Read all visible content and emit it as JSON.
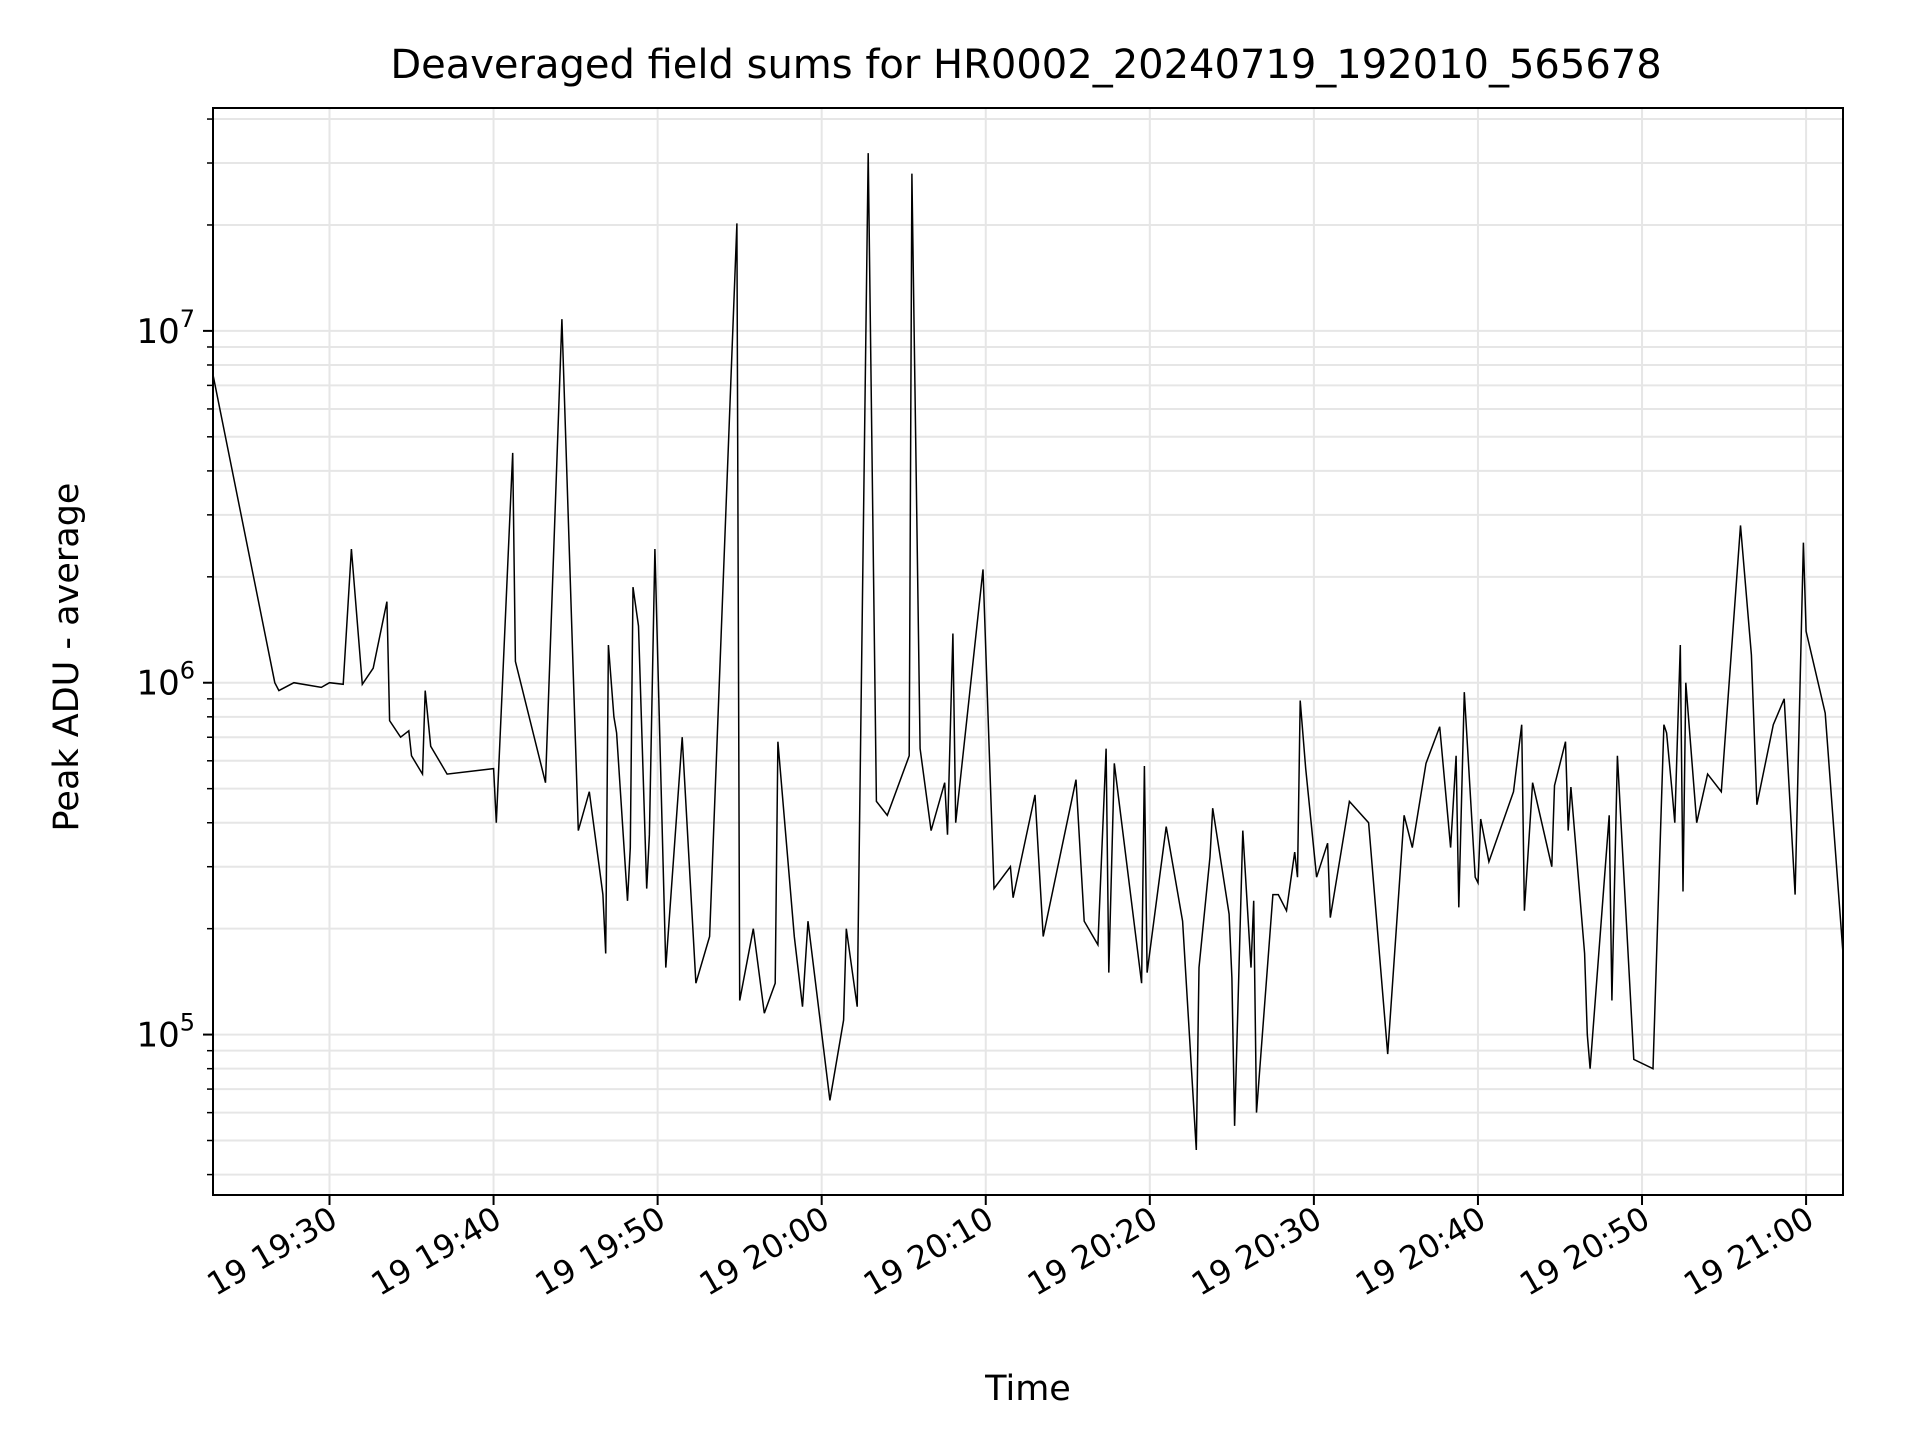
{
  "chart_data": {
    "type": "line",
    "title": "Deaveraged field sums for HR0002_20240719_192010_565678",
    "xlabel": "Time",
    "ylabel": "Peak ADU - average",
    "yscale": "log",
    "grid": true,
    "line_color": "#000000",
    "grid_color": "#e6e6e6",
    "xlim": [
      "2024-07-19T19:22:54",
      "2024-07-19T21:02:15"
    ],
    "ylim": [
      35000,
      43000000
    ],
    "x_ticks": [
      {
        "t": "2024-07-19T19:30:00",
        "label": "19 19:30"
      },
      {
        "t": "2024-07-19T19:40:00",
        "label": "19 19:40"
      },
      {
        "t": "2024-07-19T19:50:00",
        "label": "19 19:50"
      },
      {
        "t": "2024-07-19T20:00:00",
        "label": "19 20:00"
      },
      {
        "t": "2024-07-19T20:10:00",
        "label": "19 20:10"
      },
      {
        "t": "2024-07-19T20:20:00",
        "label": "19 20:20"
      },
      {
        "t": "2024-07-19T20:30:00",
        "label": "19 20:30"
      },
      {
        "t": "2024-07-19T20:40:00",
        "label": "19 20:40"
      },
      {
        "t": "2024-07-19T20:50:00",
        "label": "19 20:50"
      },
      {
        "t": "2024-07-19T21:00:00",
        "label": "19 21:00"
      }
    ],
    "y_ticks": [
      {
        "value": 100000,
        "base": "10",
        "exp": "5"
      },
      {
        "value": 1000000,
        "base": "10",
        "exp": "6"
      },
      {
        "value": 10000000,
        "base": "10",
        "exp": "7"
      }
    ],
    "series": [
      {
        "x": [
          "2024-07-19T19:22:54",
          "2024-07-19T19:26:40",
          "2024-07-19T19:26:55",
          "2024-07-19T19:27:50",
          "2024-07-19T19:29:30",
          "2024-07-19T19:30:00",
          "2024-07-19T19:30:50",
          "2024-07-19T19:31:20",
          "2024-07-19T19:32:00",
          "2024-07-19T19:32:40",
          "2024-07-19T19:33:30",
          "2024-07-19T19:33:40",
          "2024-07-19T19:34:20",
          "2024-07-19T19:34:50",
          "2024-07-19T19:35:00",
          "2024-07-19T19:35:40",
          "2024-07-19T19:35:50",
          "2024-07-19T19:36:10",
          "2024-07-19T19:37:10",
          "2024-07-19T19:40:00",
          "2024-07-19T19:40:10",
          "2024-07-19T19:41:10",
          "2024-07-19T19:41:20",
          "2024-07-19T19:43:10",
          "2024-07-19T19:44:10",
          "2024-07-19T19:45:10",
          "2024-07-19T19:45:50",
          "2024-07-19T19:46:40",
          "2024-07-19T19:46:50",
          "2024-07-19T19:47:00",
          "2024-07-19T19:47:20",
          "2024-07-19T19:47:30",
          "2024-07-19T19:48:10",
          "2024-07-19T19:48:20",
          "2024-07-19T19:48:30",
          "2024-07-19T19:48:50",
          "2024-07-19T19:49:20",
          "2024-07-19T19:49:30",
          "2024-07-19T19:49:50",
          "2024-07-19T19:50:30",
          "2024-07-19T19:51:30",
          "2024-07-19T19:52:20",
          "2024-07-19T19:53:10",
          "2024-07-19T19:54:50",
          "2024-07-19T19:55:00",
          "2024-07-19T19:55:50",
          "2024-07-19T19:56:30",
          "2024-07-19T19:57:10",
          "2024-07-19T19:57:20",
          "2024-07-19T19:58:20",
          "2024-07-19T19:58:50",
          "2024-07-19T19:59:10",
          "2024-07-19T20:00:30",
          "2024-07-19T20:01:20",
          "2024-07-19T20:01:30",
          "2024-07-19T20:02:10",
          "2024-07-19T20:02:50",
          "2024-07-19T20:03:20",
          "2024-07-19T20:04:00",
          "2024-07-19T20:05:20",
          "2024-07-19T20:05:30",
          "2024-07-19T20:06:00",
          "2024-07-19T20:06:40",
          "2024-07-19T20:07:30",
          "2024-07-19T20:07:40",
          "2024-07-19T20:08:00",
          "2024-07-19T20:08:10",
          "2024-07-19T20:09:50",
          "2024-07-19T20:10:30",
          "2024-07-19T20:11:30",
          "2024-07-19T20:11:40",
          "2024-07-19T20:13:00",
          "2024-07-19T20:13:30",
          "2024-07-19T20:15:30",
          "2024-07-19T20:16:00",
          "2024-07-19T20:16:50",
          "2024-07-19T20:17:20",
          "2024-07-19T20:17:30",
          "2024-07-19T20:17:50",
          "2024-07-19T20:19:30",
          "2024-07-19T20:19:40",
          "2024-07-19T20:19:50",
          "2024-07-19T20:21:00",
          "2024-07-19T20:22:00",
          "2024-07-19T20:22:50",
          "2024-07-19T20:23:00",
          "2024-07-19T20:23:40",
          "2024-07-19T20:23:50",
          "2024-07-19T20:24:50",
          "2024-07-19T20:25:00",
          "2024-07-19T20:25:10",
          "2024-07-19T20:25:40",
          "2024-07-19T20:26:10",
          "2024-07-19T20:26:20",
          "2024-07-19T20:26:30",
          "2024-07-19T20:27:30",
          "2024-07-19T20:27:50",
          "2024-07-19T20:28:20",
          "2024-07-19T20:28:50",
          "2024-07-19T20:29:00",
          "2024-07-19T20:29:10",
          "2024-07-19T20:29:30",
          "2024-07-19T20:30:10",
          "2024-07-19T20:30:50",
          "2024-07-19T20:31:00",
          "2024-07-19T20:32:10",
          "2024-07-19T20:33:20",
          "2024-07-19T20:34:30",
          "2024-07-19T20:35:30",
          "2024-07-19T20:36:00",
          "2024-07-19T20:36:50",
          "2024-07-19T20:37:40",
          "2024-07-19T20:38:20",
          "2024-07-19T20:38:40",
          "2024-07-19T20:38:50",
          "2024-07-19T20:39:10",
          "2024-07-19T20:39:50",
          "2024-07-19T20:40:00",
          "2024-07-19T20:40:10",
          "2024-07-19T20:40:40",
          "2024-07-19T20:42:10",
          "2024-07-19T20:42:40",
          "2024-07-19T20:42:50",
          "2024-07-19T20:43:20",
          "2024-07-19T20:44:30",
          "2024-07-19T20:44:40",
          "2024-07-19T20:45:20",
          "2024-07-19T20:45:30",
          "2024-07-19T20:45:40",
          "2024-07-19T20:46:30",
          "2024-07-19T20:46:40",
          "2024-07-19T20:46:50",
          "2024-07-19T20:48:00",
          "2024-07-19T20:48:10",
          "2024-07-19T20:48:30",
          "2024-07-19T20:49:30",
          "2024-07-19T20:50:40",
          "2024-07-19T20:51:20",
          "2024-07-19T20:51:30",
          "2024-07-19T20:51:50",
          "2024-07-19T20:52:00",
          "2024-07-19T20:52:20",
          "2024-07-19T20:52:30",
          "2024-07-19T20:52:40",
          "2024-07-19T20:53:20",
          "2024-07-19T20:54:00",
          "2024-07-19T20:54:50",
          "2024-07-19T20:56:00",
          "2024-07-19T20:56:40",
          "2024-07-19T20:57:00",
          "2024-07-19T20:58:00",
          "2024-07-19T20:58:40",
          "2024-07-19T20:59:20",
          "2024-07-19T20:59:50",
          "2024-07-19T21:00:00",
          "2024-07-19T21:01:10",
          "2024-07-19T21:02:15"
        ],
        "y": [
          7500000,
          1000000,
          950000,
          1000000,
          970000,
          1000000,
          990000,
          2400000,
          990000,
          1100000,
          1700000,
          780000,
          700000,
          730000,
          620000,
          550000,
          950000,
          660000,
          550000,
          570000,
          400000,
          4500000,
          1150000,
          520000,
          10800000,
          380000,
          490000,
          250000,
          170000,
          1280000,
          800000,
          720000,
          240000,
          340000,
          1870000,
          1450000,
          260000,
          370000,
          2400000,
          155000,
          700000,
          140000,
          190000,
          20200000,
          125000,
          200000,
          115000,
          140000,
          680000,
          190000,
          120000,
          210000,
          65000,
          110000,
          200000,
          120000,
          32000000,
          460000,
          420000,
          620000,
          28000000,
          650000,
          380000,
          520000,
          370000,
          1380000,
          400000,
          2100000,
          260000,
          300000,
          245000,
          480000,
          190000,
          530000,
          210000,
          180000,
          650000,
          150000,
          590000,
          140000,
          580000,
          150000,
          390000,
          210000,
          47000,
          155000,
          320000,
          440000,
          220000,
          145000,
          55000,
          380000,
          155000,
          240000,
          60000,
          250000,
          250000,
          225000,
          330000,
          280000,
          890000,
          570000,
          280000,
          350000,
          215000,
          460000,
          400000,
          88000,
          420000,
          340000,
          590000,
          750000,
          340000,
          620000,
          230000,
          940000,
          280000,
          270000,
          410000,
          310000,
          490000,
          760000,
          225000,
          520000,
          300000,
          510000,
          680000,
          380000,
          505000,
          170000,
          100000,
          80000,
          420000,
          125000,
          620000,
          85000,
          80000,
          760000,
          720000,
          490000,
          400000,
          1280000,
          255000,
          1000000,
          400000,
          550000,
          490000,
          2800000,
          1200000,
          450000,
          760000,
          900000,
          250000,
          2500000,
          1400000,
          820000,
          170000
        ]
      }
    ]
  }
}
